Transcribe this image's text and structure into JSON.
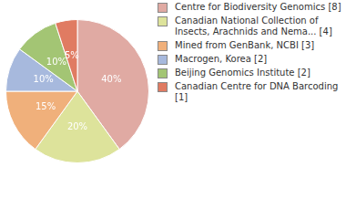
{
  "chart_data": {
    "type": "pie",
    "categories": [
      "Centre for Biodiversity Genomics [8]",
      "Canadian National Collection of Insects, Arachnids and Nema... [4]",
      "Mined from GenBank, NCBI [3]",
      "Macrogen, Korea [2]",
      "Beijing Genomics Institute [2]",
      "Canadian Centre for DNA Barcoding [1]"
    ],
    "values": [
      40,
      20,
      15,
      10,
      10,
      5
    ],
    "value_labels": [
      "40%",
      "20%",
      "15%",
      "10%",
      "10%",
      "5%"
    ],
    "colors": [
      "#e0aaa3",
      "#dde39b",
      "#f0b07b",
      "#a7b9dd",
      "#a3c574",
      "#e07b62"
    ],
    "data_labels": true,
    "legend": "right"
  }
}
